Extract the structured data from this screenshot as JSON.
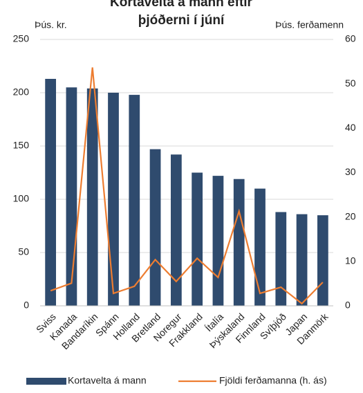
{
  "chart_data": {
    "type": "bar_line",
    "title": [
      "Kortavelta á mann eftir",
      "þjóðerni í júní"
    ],
    "ylabel": "Þús. kr.",
    "y2label": "Þús. ferðamenn",
    "categories": [
      "Sviss",
      "Kanada",
      "Bandaríkin",
      "Spánn",
      "Holland",
      "Bretland",
      "Noregur",
      "Frakkland",
      "Ítalía",
      "Þýskaland",
      "Finnland",
      "Svíþjóð",
      "Japan",
      "Danmörk"
    ],
    "series": [
      {
        "name": "Kortavelta á mann",
        "color": "#2f4b6e",
        "kind": "bar",
        "values": [
          213,
          205,
          204,
          200,
          198,
          147,
          142,
          125,
          122,
          119,
          110,
          88,
          86,
          85
        ]
      },
      {
        "name": "Fjöldi ferðamanna (h. ás)",
        "color": "#ed7d31",
        "kind": "line",
        "axis": "y2",
        "values": [
          3.4,
          5.1,
          53.7,
          2.8,
          4.4,
          10.4,
          5.5,
          10.7,
          6.4,
          21.3,
          2.8,
          4.2,
          0.5,
          5.3
        ]
      }
    ],
    "ylim": [
      0,
      250
    ],
    "yticks": [
      0,
      50,
      100,
      150,
      200,
      250
    ],
    "y2lim": [
      0,
      60
    ],
    "y2ticks": [
      0,
      10,
      20,
      30,
      40,
      50,
      60
    ],
    "grid": true,
    "legend": "bottom"
  }
}
